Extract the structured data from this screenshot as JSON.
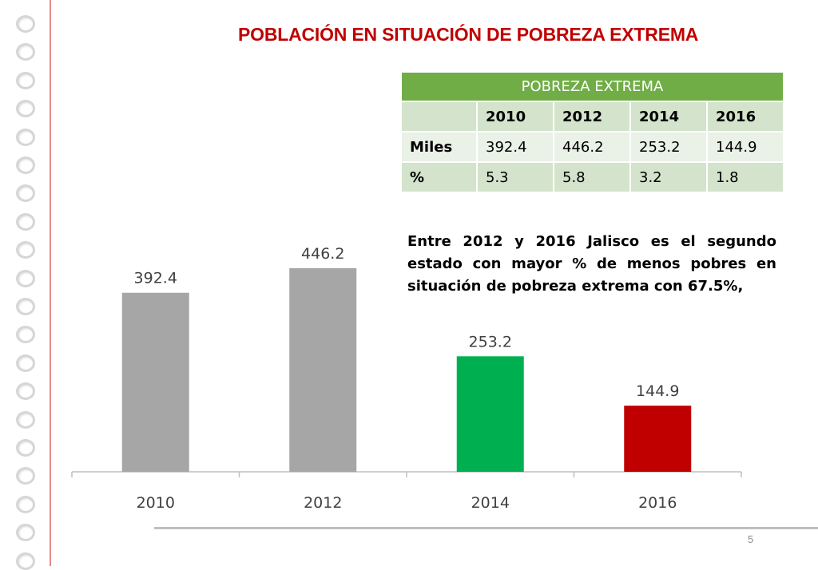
{
  "title": "POBLACIÓN EN SITUACIÓN DE POBREZA EXTREMA",
  "table": {
    "header": "POBREZA EXTREMA",
    "columns": [
      "2010",
      "2012",
      "2014",
      "2016"
    ],
    "rows": [
      {
        "label": "Miles",
        "values": [
          "392.4",
          "446.2",
          "253.2",
          "144.9"
        ]
      },
      {
        "label": "%",
        "values": [
          "5.3",
          "5.8",
          "3.2",
          "1.8"
        ]
      }
    ]
  },
  "annotation": "Entre 2012 y 2016 Jalisco es el segundo estado con mayor % de menos pobres en situación de pobreza extrema con 67.5%,",
  "page_number": "5",
  "colors": {
    "title": "#c00000",
    "table_header": "#70ad47",
    "bar_2010": "#a6a6a6",
    "bar_2012": "#a6a6a6",
    "bar_2014": "#00b050",
    "bar_2016": "#c00000"
  },
  "chart_data": {
    "type": "bar",
    "categories": [
      "2010",
      "2012",
      "2014",
      "2016"
    ],
    "values": [
      392.4,
      446.2,
      253.2,
      144.9
    ],
    "labels": [
      "392.4",
      "446.2",
      "253.2",
      "144.9"
    ],
    "colors": [
      "#a6a6a6",
      "#a6a6a6",
      "#00b050",
      "#c00000"
    ],
    "ylim": [
      0,
      500
    ],
    "grid": false,
    "legend": "none"
  }
}
